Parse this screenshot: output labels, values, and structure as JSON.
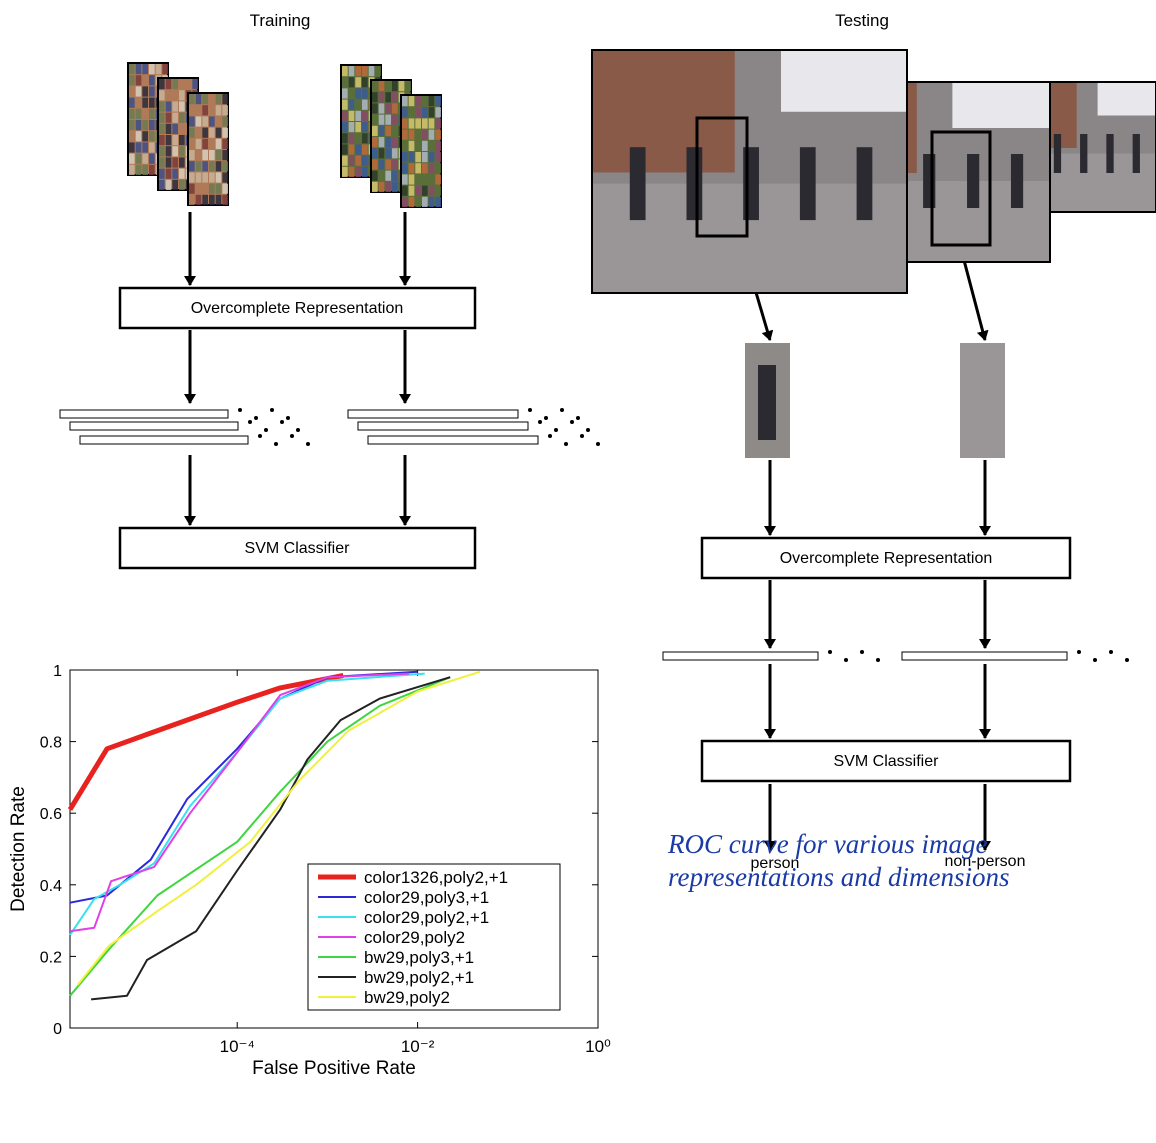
{
  "training": {
    "title": "Training",
    "boxes": [
      "Overcomplete Representation",
      "SVM Classifier"
    ]
  },
  "testing": {
    "title": "Testing",
    "boxes": [
      "Overcomplete Representation",
      "SVM Classifier"
    ],
    "outputs": [
      "person",
      "non-person"
    ]
  },
  "caption": "ROC curve for various image representations and dimensions",
  "chart_data": {
    "type": "line",
    "xlabel": "False Positive Rate",
    "ylabel": "Detection Rate",
    "log_x": true,
    "grid": false,
    "legend": "lower right",
    "xlim": [
      1.4e-06,
      1
    ],
    "ylim": [
      0,
      1
    ],
    "xticks": [
      {
        "value": 0.0001,
        "label": "10⁻⁴"
      },
      {
        "value": 0.01,
        "label": "10⁻²"
      },
      {
        "value": 1,
        "label": "10⁰"
      }
    ],
    "yticks": [
      0,
      0.2,
      0.4,
      0.6,
      0.8,
      1
    ],
    "series": [
      {
        "name": "color1326,poly2,+1",
        "color": "#e8231f",
        "width": 5,
        "x": [
          1.4e-06,
          3.6e-06,
          1e-05,
          0.0001,
          0.0003,
          0.0012,
          0.0015
        ],
        "values": [
          0.61,
          0.78,
          0.82,
          0.91,
          0.95,
          0.98,
          0.985
        ]
      },
      {
        "name": "color29,poly3,+1",
        "color": "#2a2ad8",
        "width": 2,
        "x": [
          1.4e-06,
          3.6e-06,
          1.1e-05,
          2.8e-05,
          0.0001,
          0.0003,
          0.001,
          0.01
        ],
        "values": [
          0.35,
          0.37,
          0.47,
          0.64,
          0.78,
          0.92,
          0.98,
          0.995
        ]
      },
      {
        "name": "color29,poly2,+1",
        "color": "#38e0f0",
        "width": 2,
        "x": [
          1.4e-06,
          2.6e-06,
          5e-06,
          1.2e-05,
          3e-05,
          0.0001,
          0.0003,
          0.001,
          0.012
        ],
        "values": [
          0.26,
          0.36,
          0.4,
          0.46,
          0.62,
          0.77,
          0.92,
          0.97,
          0.99
        ]
      },
      {
        "name": "color29,poly2",
        "color": "#e040e8",
        "width": 2,
        "x": [
          1.4e-06,
          2.6e-06,
          4e-06,
          1.2e-05,
          3e-05,
          0.0001,
          0.0003,
          0.001,
          0.008
        ],
        "values": [
          0.27,
          0.28,
          0.41,
          0.45,
          0.6,
          0.77,
          0.93,
          0.98,
          0.99
        ]
      },
      {
        "name": "bw29,poly3,+1",
        "color": "#3ed63e",
        "width": 2,
        "x": [
          1.4e-06,
          3.8e-06,
          1.3e-05,
          0.0001,
          0.0003,
          0.001,
          0.0038,
          0.023
        ],
        "values": [
          0.09,
          0.22,
          0.37,
          0.52,
          0.66,
          0.8,
          0.9,
          0.98
        ]
      },
      {
        "name": "bw29,poly2,+1",
        "color": "#222222",
        "width": 2,
        "x": [
          2.4e-06,
          6e-06,
          1e-05,
          3.5e-05,
          0.0001,
          0.0003,
          0.0006,
          0.0014,
          0.0038,
          0.023
        ],
        "values": [
          0.08,
          0.09,
          0.19,
          0.27,
          0.44,
          0.61,
          0.75,
          0.86,
          0.92,
          0.98
        ]
      },
      {
        "name": "bw29,poly2",
        "color": "#f0f040",
        "width": 2,
        "x": [
          1.7e-06,
          3.8e-06,
          1.2e-05,
          3.5e-05,
          0.00014,
          0.00048,
          0.0017,
          0.01,
          0.049
        ],
        "values": [
          0.12,
          0.23,
          0.32,
          0.4,
          0.52,
          0.69,
          0.83,
          0.94,
          0.995
        ]
      }
    ]
  }
}
